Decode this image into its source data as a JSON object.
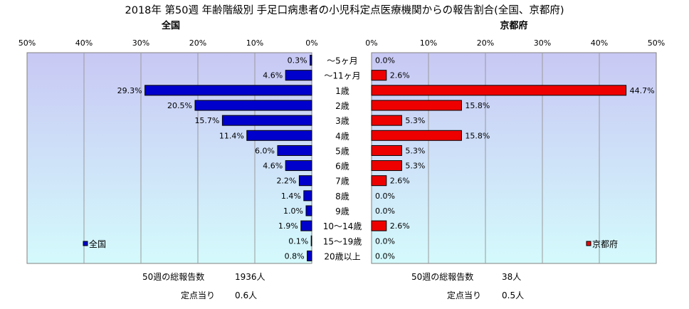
{
  "title": "2018年 第50週 年齢階級別 手足口病患者の小児科定点医療機関からの報告割合(全国、京都府)",
  "chart_data": [
    {
      "type": "bar",
      "orientation": "horizontal",
      "direction": "right-to-left",
      "title": "全国",
      "xlim": [
        0,
        50
      ],
      "xticks": [
        "50%",
        "40%",
        "30%",
        "20%",
        "10%",
        "0%"
      ],
      "categories": [
        "～5ヶ月",
        "～11ヶ月",
        "1歳",
        "2歳",
        "3歳",
        "4歳",
        "5歳",
        "6歳",
        "7歳",
        "8歳",
        "9歳",
        "10～14歳",
        "15～19歳",
        "20歳以上"
      ],
      "values": [
        0.3,
        4.6,
        29.3,
        20.5,
        15.7,
        11.4,
        6.0,
        4.6,
        2.2,
        1.4,
        1.0,
        1.9,
        0.1,
        0.8
      ],
      "labels": [
        "0.3%",
        "4.6%",
        "29.3%",
        "20.5%",
        "15.7%",
        "11.4%",
        "6.0%",
        "4.6%",
        "2.2%",
        "1.4%",
        "1.0%",
        "1.9%",
        "0.1%",
        "0.8%"
      ],
      "legend": "全国",
      "legend_position": "bottom-left",
      "color": "#0000cc",
      "grid": true
    },
    {
      "type": "bar",
      "orientation": "horizontal",
      "direction": "left-to-right",
      "title": "京都府",
      "xlim": [
        0,
        50
      ],
      "xticks": [
        "0%",
        "10%",
        "20%",
        "30%",
        "40%",
        "50%"
      ],
      "categories": [
        "～5ヶ月",
        "～11ヶ月",
        "1歳",
        "2歳",
        "3歳",
        "4歳",
        "5歳",
        "6歳",
        "7歳",
        "8歳",
        "9歳",
        "10～14歳",
        "15～19歳",
        "20歳以上"
      ],
      "values": [
        0.0,
        2.6,
        44.7,
        15.8,
        5.3,
        15.8,
        5.3,
        5.3,
        2.6,
        0.0,
        0.0,
        2.6,
        0.0,
        0.0
      ],
      "labels": [
        "0.0%",
        "2.6%",
        "44.7%",
        "15.8%",
        "5.3%",
        "15.8%",
        "5.3%",
        "5.3%",
        "2.6%",
        "0.0%",
        "0.0%",
        "2.6%",
        "0.0%",
        "0.0%"
      ],
      "legend": "京都府",
      "legend_position": "bottom-right",
      "color": "#ee0000",
      "grid": true
    }
  ],
  "summary": {
    "national": {
      "total_label": "50週の総報告数",
      "total_value": "1936人",
      "per_label": "定点当り",
      "per_value": "0.6人"
    },
    "kyoto": {
      "total_label": "50週の総報告数",
      "total_value": "38人",
      "per_label": "定点当り",
      "per_value": "0.5人"
    }
  },
  "colors": {
    "plot_bg_top": "#c8c8f4",
    "plot_bg_bottom": "#d4fafc",
    "national_bar": "#0000cc",
    "kyoto_bar": "#ee0000"
  }
}
